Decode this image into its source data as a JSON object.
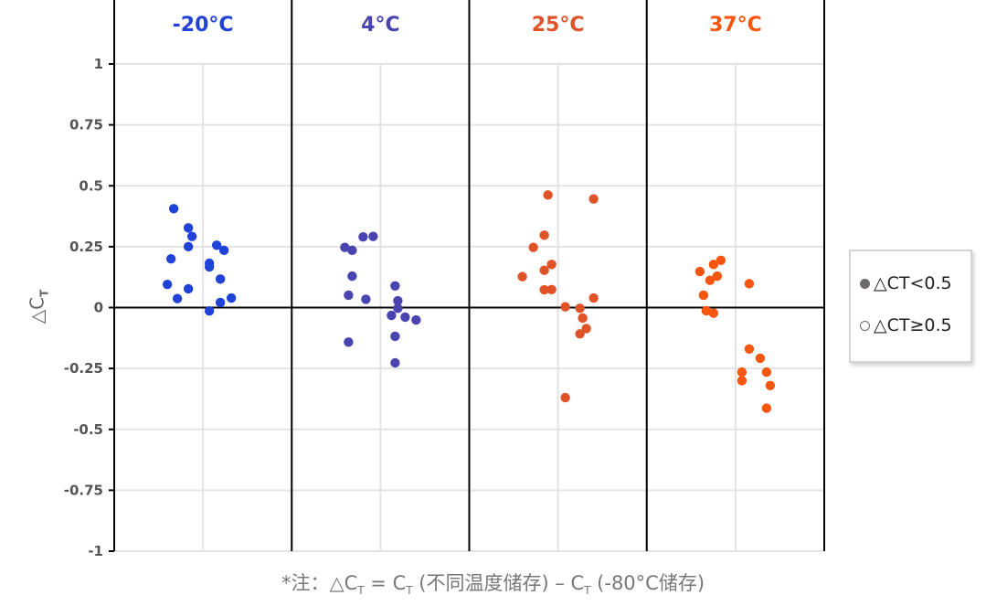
{
  "chart_data": {
    "type": "scatter",
    "title": "",
    "ylabel": "△CT",
    "xlabel": "",
    "ylim": [
      -1,
      1
    ],
    "yticks": [
      1,
      0.75,
      0.5,
      0.25,
      0,
      -0.25,
      -0.5,
      -0.75,
      -1
    ],
    "ytick_labels": [
      "1",
      "0.75",
      "0.5",
      "0.25",
      "0",
      "-0.25",
      "-0.5",
      "-0.75",
      "-1"
    ],
    "grid": true,
    "legend_position": "right",
    "legend": [
      {
        "label": "△CT<0.5",
        "marker": "filled-circle",
        "color": "#6e6a6b"
      },
      {
        "label": "△CT≥0.5",
        "marker": "open-circle",
        "color": "#6e6a6b"
      }
    ],
    "panels": [
      {
        "name": "-20°C",
        "color": "#2142d6",
        "points": [
          {
            "jitter": -32,
            "y": 0.406
          },
          {
            "jitter": -16,
            "y": 0.327
          },
          {
            "jitter": -12,
            "y": 0.292
          },
          {
            "jitter": -16,
            "y": 0.25
          },
          {
            "jitter": 15,
            "y": 0.256
          },
          {
            "jitter": 23,
            "y": 0.235
          },
          {
            "jitter": -35,
            "y": 0.2
          },
          {
            "jitter": 7,
            "y": 0.182
          },
          {
            "jitter": 7,
            "y": 0.167
          },
          {
            "jitter": 19,
            "y": 0.117
          },
          {
            "jitter": -39,
            "y": 0.095
          },
          {
            "jitter": -16,
            "y": 0.077
          },
          {
            "jitter": -28,
            "y": 0.037
          },
          {
            "jitter": 31,
            "y": 0.039
          },
          {
            "jitter": 19,
            "y": 0.021
          },
          {
            "jitter": 7,
            "y": -0.014
          }
        ]
      },
      {
        "name": "4°C",
        "color": "#4a44b0",
        "points": [
          {
            "jitter": -19,
            "y": 0.29
          },
          {
            "jitter": -8,
            "y": 0.292
          },
          {
            "jitter": -39,
            "y": 0.247
          },
          {
            "jitter": -31,
            "y": 0.235
          },
          {
            "jitter": -31,
            "y": 0.129
          },
          {
            "jitter": 16,
            "y": 0.089
          },
          {
            "jitter": -35,
            "y": 0.051
          },
          {
            "jitter": -16,
            "y": 0.034
          },
          {
            "jitter": 19,
            "y": 0.028
          },
          {
            "jitter": 19,
            "y": -0.003
          },
          {
            "jitter": 12,
            "y": -0.032
          },
          {
            "jitter": 27,
            "y": -0.039
          },
          {
            "jitter": 39,
            "y": -0.051
          },
          {
            "jitter": 16,
            "y": -0.118
          },
          {
            "jitter": -35,
            "y": -0.142
          },
          {
            "jitter": 16,
            "y": -0.227
          }
        ]
      },
      {
        "name": "25°C",
        "color": "#e05328",
        "points": [
          {
            "jitter": -11,
            "y": 0.462
          },
          {
            "jitter": 39,
            "y": 0.446
          },
          {
            "jitter": -15,
            "y": 0.297
          },
          {
            "jitter": -27,
            "y": 0.247
          },
          {
            "jitter": -7,
            "y": 0.177
          },
          {
            "jitter": -15,
            "y": 0.153
          },
          {
            "jitter": -39,
            "y": 0.127
          },
          {
            "jitter": -15,
            "y": 0.073
          },
          {
            "jitter": -7,
            "y": 0.074
          },
          {
            "jitter": 39,
            "y": 0.039
          },
          {
            "jitter": 8,
            "y": 0.003
          },
          {
            "jitter": 24,
            "y": -0.003
          },
          {
            "jitter": 27,
            "y": -0.043
          },
          {
            "jitter": 31,
            "y": -0.086
          },
          {
            "jitter": 24,
            "y": -0.108
          },
          {
            "jitter": 8,
            "y": -0.37
          }
        ]
      },
      {
        "name": "37°C",
        "color": "#f6560f",
        "points": [
          {
            "jitter": -16,
            "y": 0.194
          },
          {
            "jitter": -24,
            "y": 0.177
          },
          {
            "jitter": -39,
            "y": 0.148
          },
          {
            "jitter": -20,
            "y": 0.129
          },
          {
            "jitter": -28,
            "y": 0.112
          },
          {
            "jitter": 15,
            "y": 0.098
          },
          {
            "jitter": -35,
            "y": 0.051
          },
          {
            "jitter": -32,
            "y": -0.013
          },
          {
            "jitter": -24,
            "y": -0.023
          },
          {
            "jitter": 15,
            "y": -0.17
          },
          {
            "jitter": 27,
            "y": -0.208
          },
          {
            "jitter": 7,
            "y": -0.265
          },
          {
            "jitter": 34,
            "y": -0.265
          },
          {
            "jitter": 7,
            "y": -0.3
          },
          {
            "jitter": 38,
            "y": -0.32
          },
          {
            "jitter": 34,
            "y": -0.413
          }
        ]
      }
    ],
    "footnote": "*注：△CT = CT (不同温度储存) – CT (-80°C储存)"
  },
  "legend": {
    "item1": "△CT<0.5",
    "item2": "△CT≥0.5"
  },
  "axis": {
    "ylabel_main": "△C",
    "ylabel_sub": "T"
  },
  "footnote": {
    "prefix": "*注：△C",
    "sub1": "T",
    "mid": " = C",
    "sub2": "T",
    "mid2": " (不同温度储存) – C",
    "sub3": "T",
    "suffix": " (-80°C储存)"
  }
}
